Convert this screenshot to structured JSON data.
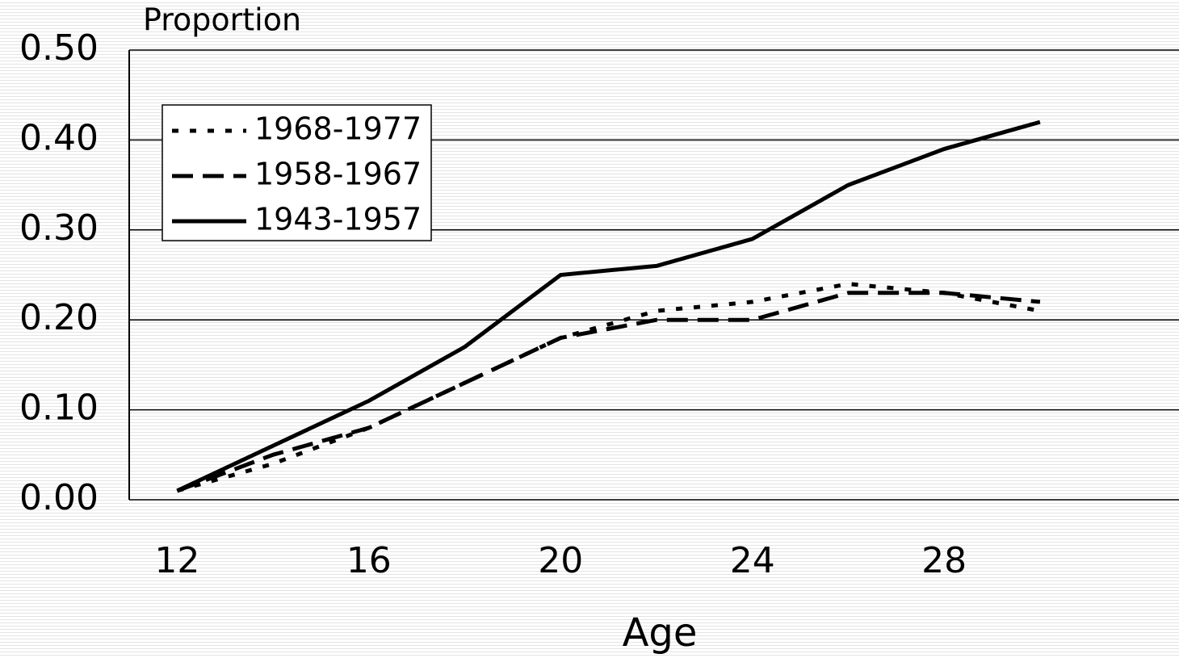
{
  "chart_data": {
    "type": "line",
    "title": "Proportion",
    "x_label": "Age",
    "x": [
      12,
      14,
      16,
      18,
      20,
      22,
      24,
      26,
      28,
      30
    ],
    "series": [
      {
        "name": "1968-1977",
        "color": "#000000",
        "dash": "dotted",
        "values": [
          0.01,
          0.04,
          0.08,
          0.13,
          0.18,
          0.21,
          0.22,
          0.24,
          0.23,
          0.21
        ]
      },
      {
        "name": "1958-1967",
        "color": "#000000",
        "dash": "dashed",
        "values": [
          0.01,
          0.05,
          0.08,
          0.13,
          0.18,
          0.2,
          0.2,
          0.23,
          0.23,
          0.22
        ]
      },
      {
        "name": "1943-1957",
        "color": "#000000",
        "dash": "solid",
        "values": [
          0.01,
          0.06,
          0.11,
          0.17,
          0.25,
          0.26,
          0.29,
          0.35,
          0.39,
          0.42
        ]
      }
    ],
    "xlim": [
      11,
      33
    ],
    "xticks": [
      12,
      16,
      20,
      24,
      28
    ],
    "ylim": [
      0,
      0.5
    ],
    "yticks": [
      {
        "value": 0,
        "label": "0.00"
      },
      {
        "value": 0.1,
        "label": "0.10"
      },
      {
        "value": 0.2,
        "label": "0.20"
      },
      {
        "value": 0.3,
        "label": "0.30"
      },
      {
        "value": 0.4,
        "label": "0.40"
      },
      {
        "value": 0.5,
        "label": "0.50"
      }
    ],
    "grid": true,
    "legend": "upper left"
  }
}
